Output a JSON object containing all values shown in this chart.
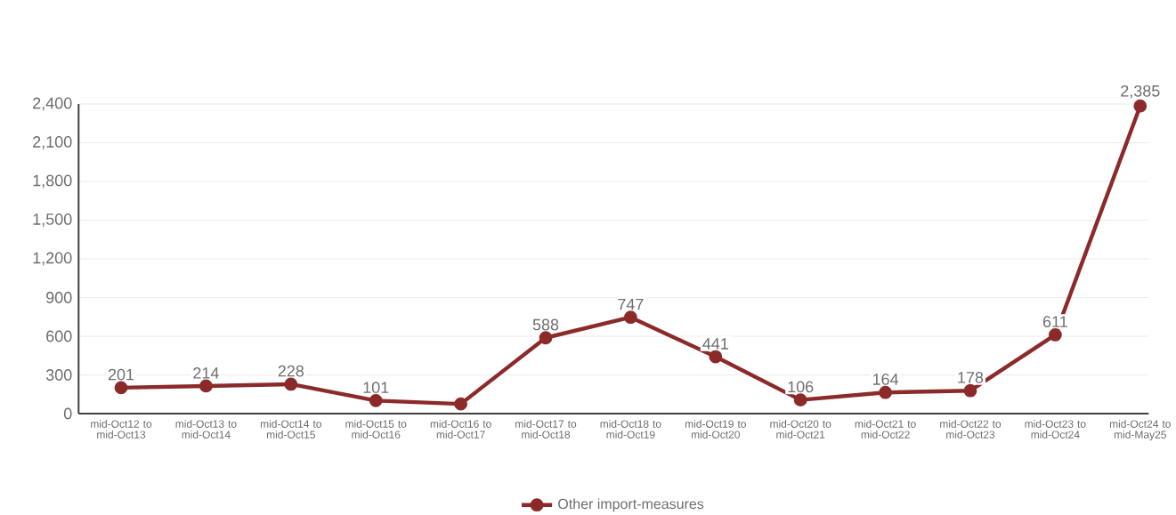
{
  "chart_data": {
    "type": "line",
    "categories": [
      "mid-Oct12 to mid-Oct13",
      "mid-Oct13 to mid-Oct14",
      "mid-Oct14 to mid-Oct15",
      "mid-Oct15 to mid-Oct16",
      "mid-Oct16 to mid-Oct17",
      "mid-Oct17 to mid-Oct18",
      "mid-Oct18 to mid-Oct19",
      "mid-Oct19 to mid-Oct20",
      "mid-Oct20 to mid-Oct21",
      "mid-Oct21 to mid-Oct22",
      "mid-Oct22 to mid-Oct23",
      "mid-Oct23 to mid-Oct24",
      "mid-Oct24 to mid-May25"
    ],
    "series": [
      {
        "name": "Other import-measures",
        "color": "#8c2a2a",
        "values": [
          201,
          214,
          228,
          101,
          75,
          588,
          747,
          441,
          106,
          164,
          178,
          611,
          2385
        ],
        "value_labels": [
          "201",
          "214",
          "228",
          "101",
          null,
          "588",
          "747",
          "441",
          "106",
          "164",
          "178",
          "611",
          "2,385"
        ]
      }
    ],
    "ylim": [
      0,
      2400
    ],
    "yticks": [
      0,
      300,
      600,
      900,
      {
        "value": 1200,
        "label": "1,200"
      },
      {
        "value": 1500,
        "label": "1,500"
      },
      {
        "value": 1800,
        "label": "1,800"
      },
      {
        "value": 2100,
        "label": "2,100"
      },
      {
        "value": 2400,
        "label": "2,400"
      }
    ],
    "grid": "y",
    "legend": "bottom",
    "marker": "circle",
    "line_style": "solid"
  }
}
